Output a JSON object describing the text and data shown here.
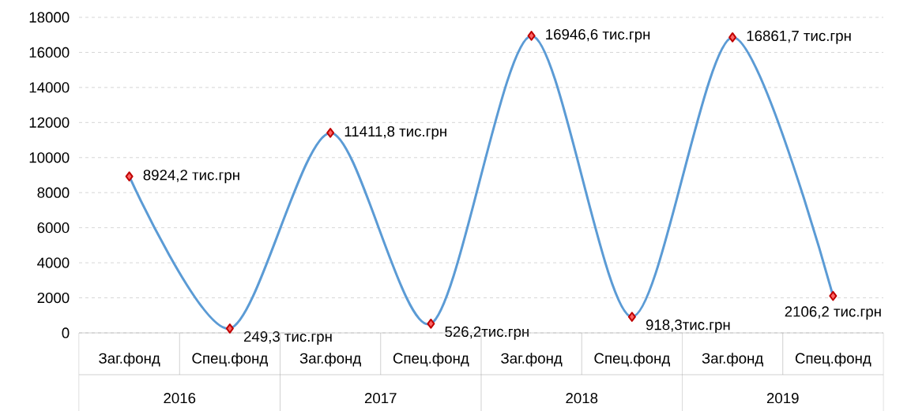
{
  "chart_data": {
    "type": "line",
    "categories": [
      "Заг.фонд",
      "Спец.фонд",
      "Заг.фонд",
      "Спец.фонд",
      "Заг.фонд",
      "Спец.фонд",
      "Заг.фонд",
      "Спец.фонд"
    ],
    "series": [
      {
        "color": "#5b9bd5",
        "values": [
          8924.2,
          249.3,
          11411.8,
          526.2,
          16946.6,
          918.3,
          16861.7,
          2106.2
        ],
        "value_labels": [
          "8924,2 тис.грн",
          "249,3 тис.грн",
          "11411,8 тис.грн",
          "526,2тис.грн",
          "16946,6 тис.грн",
          "918,3тис.грн",
          "16861,7 тис.грн",
          "2106,2 тис.грн"
        ]
      }
    ],
    "annotations": [
      "2016",
      "2017",
      "2018",
      "2019"
    ],
    "ylim": [
      0,
      18000
    ],
    "yticks": [
      0,
      2000,
      4000,
      6000,
      8000,
      10000,
      12000,
      14000,
      16000,
      18000
    ],
    "grid": "y",
    "marker": "diamond",
    "line_style": "solid"
  }
}
